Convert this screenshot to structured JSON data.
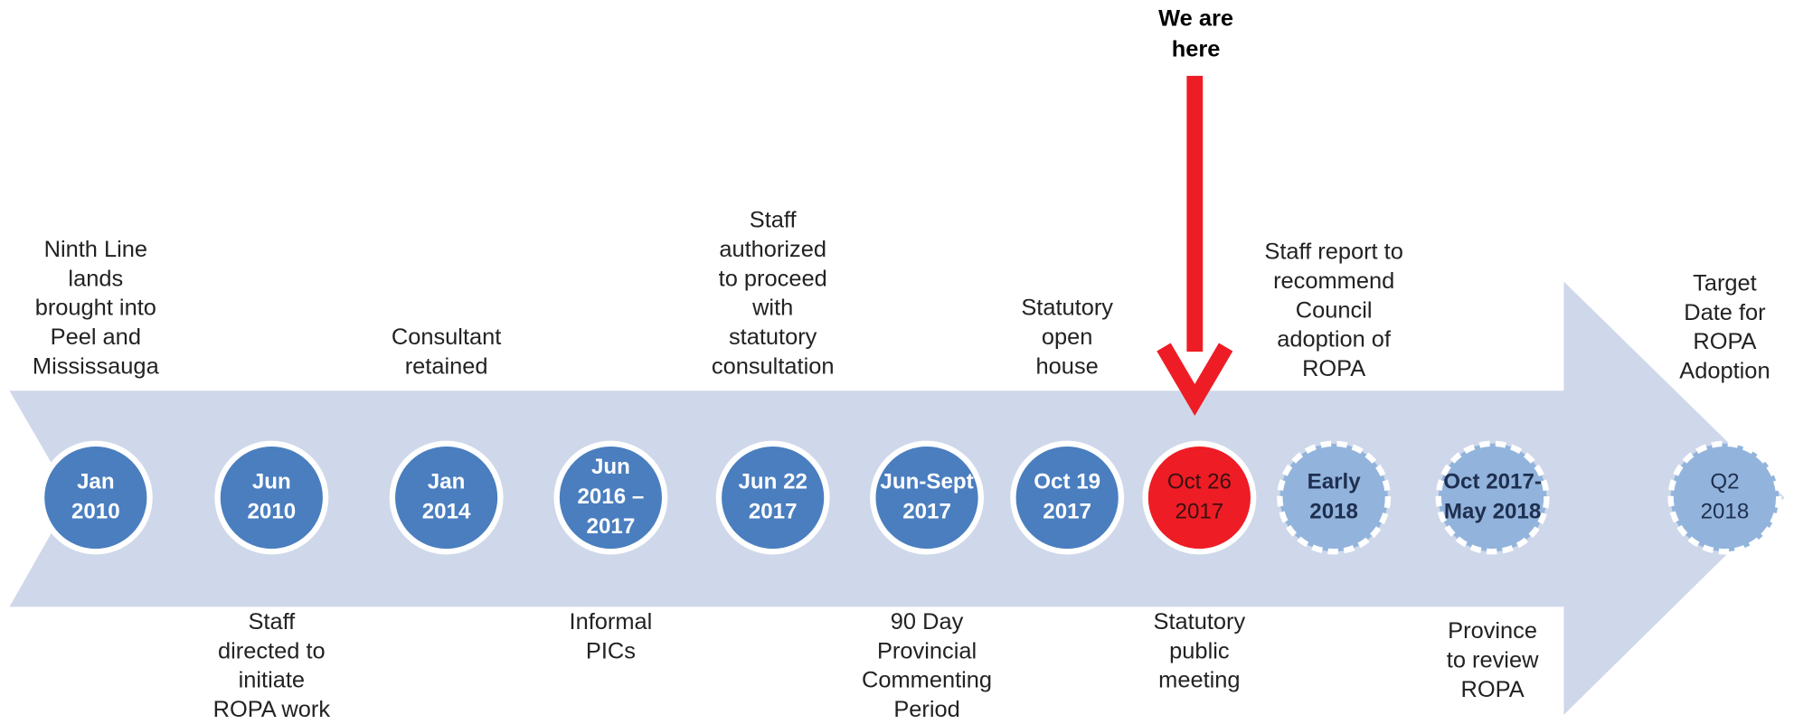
{
  "pointer": {
    "lines": [
      "We are",
      "here"
    ]
  },
  "milestones": [
    {
      "date": [
        "Jan",
        "2010"
      ],
      "style": "dark",
      "side": "above",
      "text": [
        "Ninth Line",
        "lands",
        "brought into",
        "Peel and",
        "Mississauga"
      ]
    },
    {
      "date": [
        "Jun",
        "2010"
      ],
      "style": "dark",
      "side": "below",
      "text": [
        "Staff",
        "directed to",
        "initiate",
        "ROPA work"
      ]
    },
    {
      "date": [
        "Jan",
        "2014"
      ],
      "style": "dark",
      "side": "above",
      "text": [
        "Consultant",
        "retained"
      ]
    },
    {
      "date": [
        "Jun",
        "2016 –",
        "2017"
      ],
      "style": "dark",
      "side": "below",
      "text": [
        "Informal",
        "PICs"
      ]
    },
    {
      "date": [
        "Jun 22",
        "2017"
      ],
      "style": "dark",
      "side": "above",
      "text": [
        "Staff",
        "authorized",
        "to proceed",
        "with",
        "statutory",
        "consultation"
      ]
    },
    {
      "date": [
        "Jun-Sept",
        "2017"
      ],
      "style": "dark",
      "side": "below",
      "text": [
        "90 Day",
        "Provincial",
        "Commenting",
        "Period"
      ]
    },
    {
      "date": [
        "Oct 19",
        "2017"
      ],
      "style": "dark",
      "side": "above",
      "text": [
        "Statutory",
        "open",
        "house"
      ]
    },
    {
      "date": [
        "Oct 26",
        "2017"
      ],
      "style": "red",
      "side": "below",
      "text": [
        "Statutory",
        "public",
        "meeting"
      ]
    },
    {
      "date": [
        "Early",
        "2018"
      ],
      "style": "light",
      "side": "above",
      "text": [
        "Staff report to",
        "recommend",
        "Council",
        "adoption of",
        "ROPA"
      ]
    },
    {
      "date": [
        "Oct 2017-",
        "May 2018"
      ],
      "style": "light",
      "side": "below",
      "text": [
        "Province",
        "to review",
        "ROPA"
      ]
    },
    {
      "date": [
        "Q2",
        "2018"
      ],
      "style": "plain",
      "side": "above",
      "text": [
        "Target",
        "Date for",
        "ROPA",
        "Adoption"
      ]
    }
  ]
}
